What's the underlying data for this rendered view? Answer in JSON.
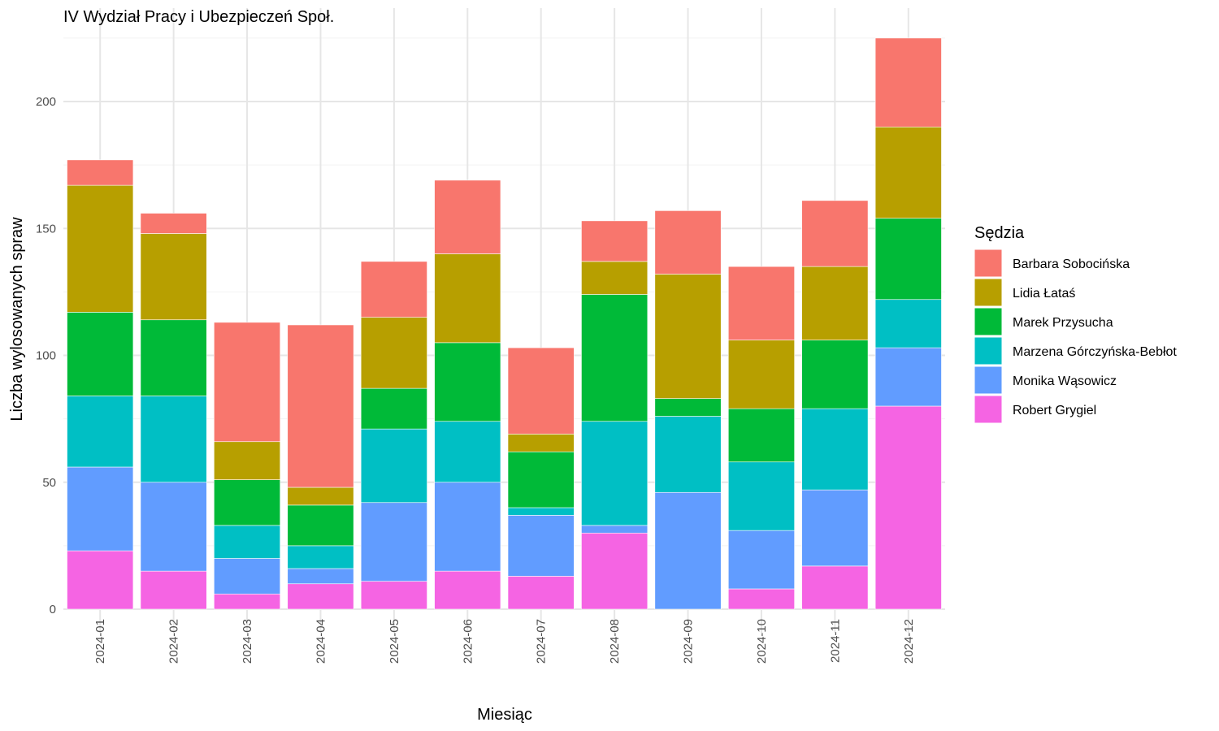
{
  "chart_data": {
    "type": "bar",
    "stacked": true,
    "title": "IV Wydział Pracy i Ubezpieczeń Społ.",
    "xlabel": "Miesiąc",
    "ylabel": "Liczba wylosowanych spraw",
    "ylim": [
      0,
      225
    ],
    "yticks": [
      0,
      50,
      100,
      150,
      200
    ],
    "grid": true,
    "legend_title": "Sędzia",
    "legend_position": "right",
    "categories": [
      "2024-01",
      "2024-02",
      "2024-03",
      "2024-04",
      "2024-05",
      "2024-06",
      "2024-07",
      "2024-08",
      "2024-09",
      "2024-10",
      "2024-11",
      "2024-12"
    ],
    "series": [
      {
        "name": "Robert Grygiel",
        "color": "#F564E3",
        "values": [
          23,
          15,
          6,
          10,
          11,
          15,
          13,
          30,
          0,
          8,
          17,
          80
        ]
      },
      {
        "name": "Monika Wąsowicz",
        "color": "#619CFF",
        "values": [
          33,
          35,
          14,
          6,
          31,
          35,
          24,
          3,
          46,
          23,
          30,
          23
        ]
      },
      {
        "name": "Marzena Górczyńska-Bebłot",
        "color": "#00BFC4",
        "values": [
          28,
          34,
          13,
          9,
          29,
          24,
          3,
          41,
          30,
          27,
          32,
          19
        ]
      },
      {
        "name": "Marek Przysucha",
        "color": "#00BA38",
        "values": [
          33,
          30,
          18,
          16,
          16,
          31,
          22,
          50,
          7,
          21,
          27,
          32
        ]
      },
      {
        "name": "Lidia Łataś",
        "color": "#B79F00",
        "values": [
          50,
          34,
          15,
          7,
          28,
          35,
          7,
          13,
          49,
          27,
          29,
          36
        ]
      },
      {
        "name": "Barbara Sobocińska",
        "color": "#F8766D",
        "values": [
          10,
          8,
          47,
          64,
          22,
          29,
          34,
          16,
          25,
          29,
          26,
          35
        ]
      }
    ],
    "legend_order": [
      "Barbara Sobocińska",
      "Lidia Łataś",
      "Marek Przysucha",
      "Marzena Górczyńska-Bebłot",
      "Monika Wąsowicz",
      "Robert Grygiel"
    ]
  }
}
